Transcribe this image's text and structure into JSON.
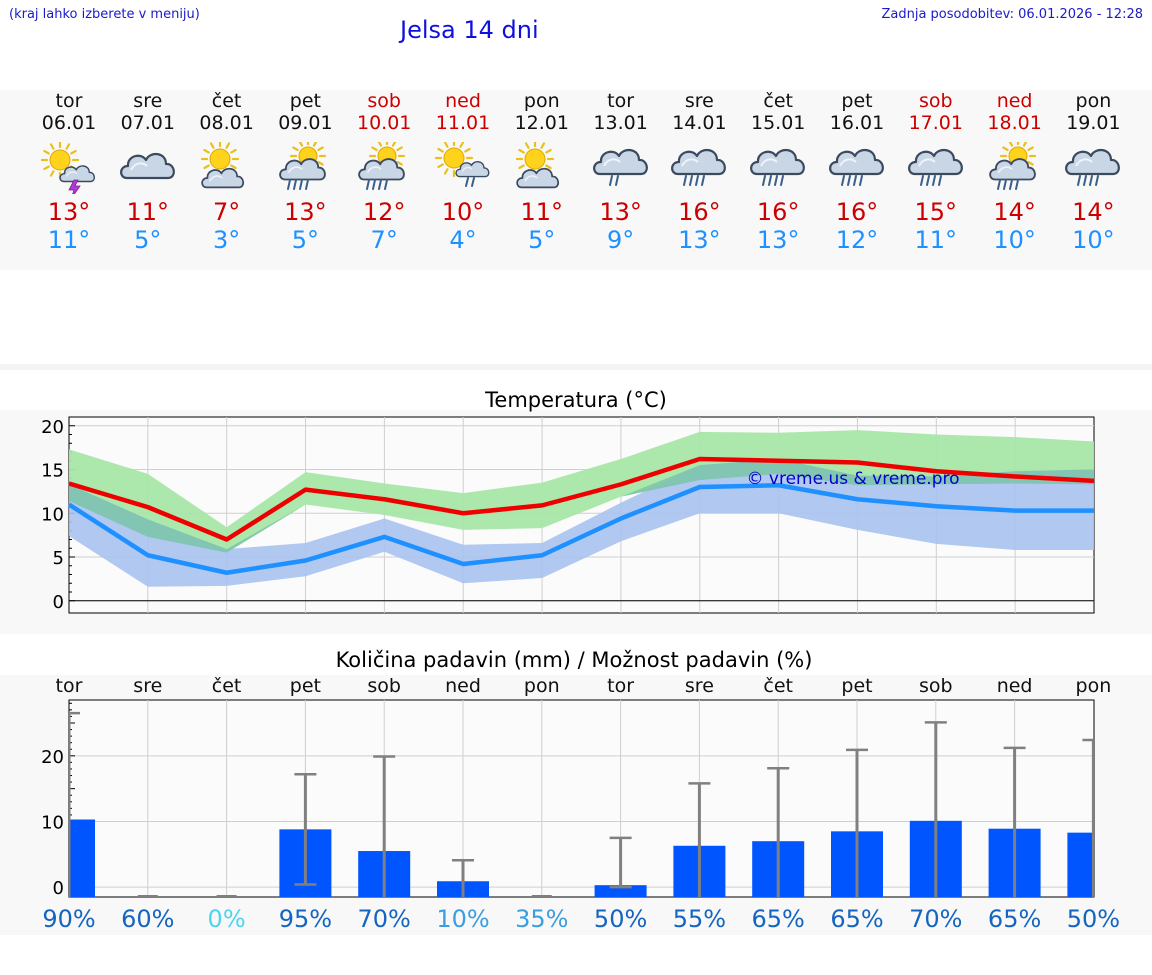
{
  "header": {
    "note": "(kraj lahko izberete v meniju)",
    "title": "Jelsa 14 dni",
    "updated": "Zadnja posodobitev: 06.01.2026 - 12:28"
  },
  "days": [
    {
      "day": "tor",
      "date": "06.01",
      "icon": "sun-cloud-thunder-icon",
      "max": "13°",
      "min": "11°",
      "weekend": false
    },
    {
      "day": "sre",
      "date": "07.01",
      "icon": "cloudy-icon",
      "max": "11°",
      "min": "5°",
      "weekend": false
    },
    {
      "day": "čet",
      "date": "08.01",
      "icon": "sun-cloud-icon",
      "max": "7°",
      "min": "3°",
      "weekend": false
    },
    {
      "day": "pet",
      "date": "09.01",
      "icon": "sun-cloud-rain-icon",
      "max": "13°",
      "min": "5°",
      "weekend": false
    },
    {
      "day": "sob",
      "date": "10.01",
      "icon": "sun-cloud-rain-icon",
      "max": "12°",
      "min": "7°",
      "weekend": true
    },
    {
      "day": "ned",
      "date": "11.01",
      "icon": "sun-cloud-light-rain-icon",
      "max": "10°",
      "min": "4°",
      "weekend": true
    },
    {
      "day": "pon",
      "date": "12.01",
      "icon": "sun-cloud-icon",
      "max": "11°",
      "min": "5°",
      "weekend": false
    },
    {
      "day": "tor",
      "date": "13.01",
      "icon": "cloud-light-rain-icon",
      "max": "13°",
      "min": "9°",
      "weekend": false
    },
    {
      "day": "sre",
      "date": "14.01",
      "icon": "cloud-rain-icon",
      "max": "16°",
      "min": "13°",
      "weekend": false
    },
    {
      "day": "čet",
      "date": "15.01",
      "icon": "cloud-rain-icon",
      "max": "16°",
      "min": "13°",
      "weekend": false
    },
    {
      "day": "pet",
      "date": "16.01",
      "icon": "cloud-rain-icon",
      "max": "16°",
      "min": "12°",
      "weekend": false
    },
    {
      "day": "sob",
      "date": "17.01",
      "icon": "cloud-rain-icon",
      "max": "15°",
      "min": "11°",
      "weekend": true
    },
    {
      "day": "ned",
      "date": "18.01",
      "icon": "sun-cloud-rain-icon",
      "max": "14°",
      "min": "10°",
      "weekend": true
    },
    {
      "day": "pon",
      "date": "19.01",
      "icon": "cloud-rain-icon",
      "max": "14°",
      "min": "10°",
      "weekend": false
    }
  ],
  "colors": {
    "max": "#ee0000",
    "min": "#1e90ff",
    "max_band": "#a8e6a8",
    "min_band": "#a9c2f0",
    "overlap_band": "#7bc4a8",
    "precip_bar": "#0055ff",
    "error_bar": "#808080",
    "watermark": "#0000cc"
  },
  "chart_data": [
    {
      "type": "line",
      "title": "Temperatura (°C)",
      "watermark": "© vreme.us & vreme.pro",
      "ylim": [
        -1.4,
        21
      ],
      "yticks": [
        0,
        5,
        10,
        15,
        20
      ],
      "x": [
        0,
        0.5,
        1,
        1.5,
        2,
        2.5,
        3,
        3.5,
        4,
        4.5,
        5,
        5.5,
        6,
        6.5,
        7,
        7.5,
        8,
        8.5,
        9,
        9.5,
        10,
        10.5,
        11,
        11.5,
        12,
        12.5,
        13
      ],
      "series": [
        {
          "name": "max",
          "values": [
            13.4,
            10.7,
            7.0,
            12.7,
            11.6,
            10.0,
            10.9,
            13.3,
            16.2,
            16.0,
            15.8,
            14.8,
            14.2,
            13.7
          ],
          "x": [
            0,
            1,
            2,
            3,
            4,
            5,
            6,
            7,
            8,
            9,
            10,
            11,
            12,
            13
          ]
        },
        {
          "name": "min",
          "values": [
            11.0,
            5.2,
            3.2,
            4.6,
            7.3,
            4.2,
            5.2,
            9.4,
            13.0,
            13.2,
            11.6,
            10.8,
            10.3,
            10.3
          ],
          "x": [
            0,
            1,
            2,
            3,
            4,
            5,
            6,
            7,
            8,
            9,
            10,
            11,
            12,
            13
          ]
        },
        {
          "name": "max_range",
          "x": [
            0,
            1,
            2,
            3,
            4,
            5,
            6,
            7,
            8,
            9,
            10,
            11,
            12,
            13
          ],
          "high": [
            17.3,
            14.5,
            8.4,
            14.7,
            13.4,
            12.3,
            13.5,
            16.2,
            19.3,
            19.2,
            19.5,
            19.0,
            18.7,
            18.2
          ],
          "low": [
            11.4,
            7.3,
            5.5,
            11.0,
            9.8,
            8.1,
            8.3,
            11.9,
            13.8,
            14.5,
            13.2,
            13.3,
            13.4,
            13.3
          ]
        },
        {
          "name": "min_range",
          "x": [
            0,
            1,
            2,
            3,
            4,
            5,
            6,
            7,
            8,
            9,
            10,
            11,
            12,
            13
          ],
          "high": [
            13.3,
            9.3,
            5.9,
            6.6,
            9.4,
            6.4,
            6.6,
            11.2,
            15.5,
            16.2,
            14.3,
            14.2,
            14.8,
            15.0
          ],
          "low": [
            7.4,
            1.6,
            1.7,
            2.8,
            5.6,
            2.0,
            2.6,
            6.8,
            10.0,
            10.0,
            8.1,
            6.5,
            5.8,
            5.8
          ]
        }
      ]
    },
    {
      "type": "bar",
      "title": "Količina padavin (mm) / Možnost padavin (%)",
      "ylim": [
        -1.5,
        28.5
      ],
      "yticks": [
        0,
        10,
        20
      ],
      "categories": [
        "tor",
        "sre",
        "čet",
        "pet",
        "sob",
        "ned",
        "pon",
        "tor",
        "sre",
        "čet",
        "pet",
        "sob",
        "ned",
        "pon"
      ],
      "values": [
        10.3,
        0,
        0,
        8.8,
        5.5,
        0.9,
        0,
        0.3,
        6.3,
        7.0,
        8.5,
        10.1,
        8.9,
        8.3
      ],
      "error_low": [
        null,
        0,
        0,
        0.4,
        null,
        null,
        0,
        0,
        null,
        null,
        null,
        null,
        null,
        null
      ],
      "error_high": [
        26.5,
        0,
        0,
        17.2,
        19.9,
        4.1,
        0,
        7.5,
        15.8,
        18.1,
        20.9,
        25.1,
        21.2,
        22.4
      ],
      "chance": [
        "90%",
        "60%",
        "0%",
        "95%",
        "70%",
        "10%",
        "35%",
        "50%",
        "55%",
        "65%",
        "65%",
        "70%",
        "65%",
        "50%"
      ],
      "chance_values": [
        90,
        60,
        0,
        95,
        70,
        10,
        35,
        50,
        55,
        65,
        65,
        70,
        65,
        50
      ]
    }
  ]
}
